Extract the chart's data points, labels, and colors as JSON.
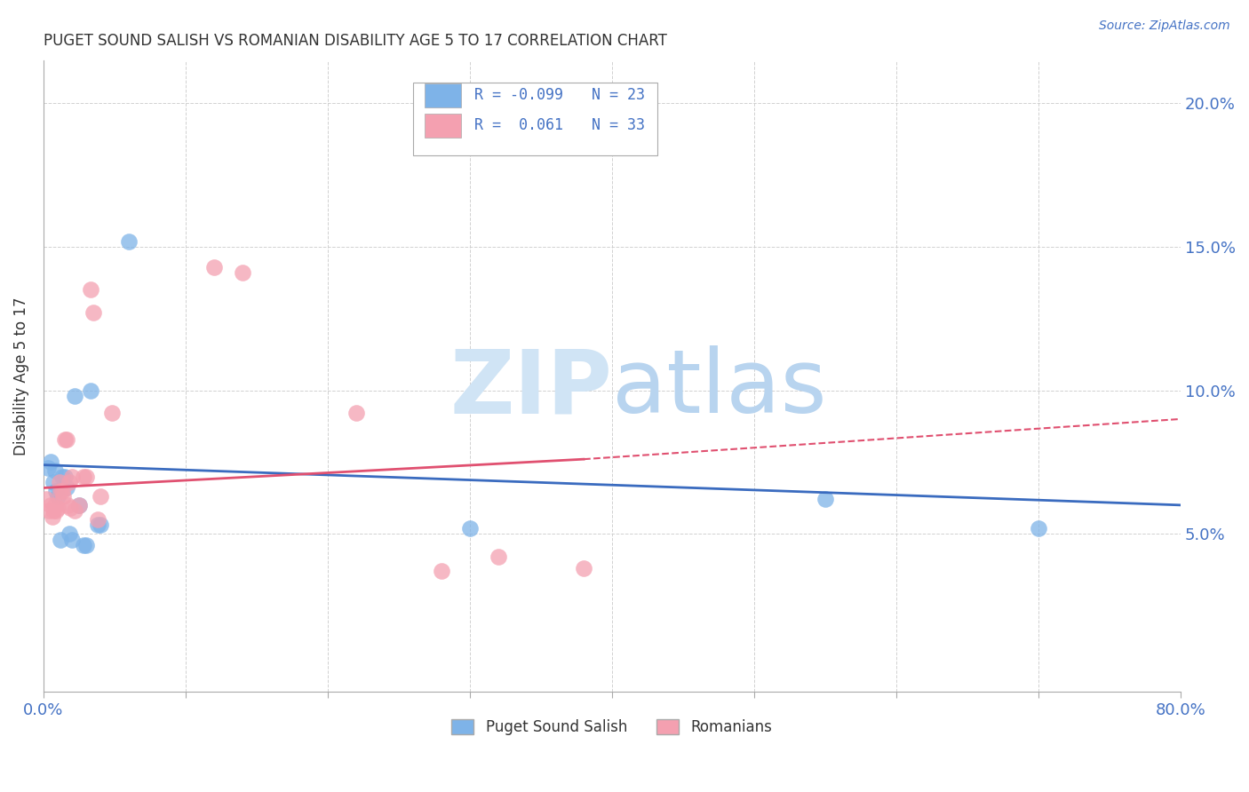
{
  "title": "PUGET SOUND SALISH VS ROMANIAN DISABILITY AGE 5 TO 17 CORRELATION CHART",
  "source": "Source: ZipAtlas.com",
  "ylabel": "Disability Age 5 to 17",
  "xlim": [
    0.0,
    0.8
  ],
  "ylim": [
    -0.005,
    0.215
  ],
  "yticks": [
    0.05,
    0.1,
    0.15,
    0.2
  ],
  "ytick_labels": [
    "5.0%",
    "10.0%",
    "15.0%",
    "20.0%"
  ],
  "series": [
    {
      "name": "Puget Sound Salish",
      "color": "#7eb3e8",
      "R": "-0.099",
      "N": "23",
      "x": [
        0.003,
        0.005,
        0.007,
        0.008,
        0.009,
        0.01,
        0.012,
        0.013,
        0.015,
        0.016,
        0.018,
        0.02,
        0.022,
        0.025,
        0.028,
        0.03,
        0.033,
        0.038,
        0.04,
        0.06,
        0.3,
        0.55,
        0.7
      ],
      "y": [
        0.073,
        0.075,
        0.068,
        0.072,
        0.065,
        0.063,
        0.048,
        0.07,
        0.07,
        0.066,
        0.05,
        0.048,
        0.098,
        0.06,
        0.046,
        0.046,
        0.1,
        0.053,
        0.053,
        0.152,
        0.052,
        0.062,
        0.052
      ]
    },
    {
      "name": "Romanians",
      "color": "#f4a0b0",
      "R": "0.061",
      "N": "33",
      "x": [
        0.002,
        0.004,
        0.005,
        0.006,
        0.007,
        0.008,
        0.009,
        0.01,
        0.011,
        0.012,
        0.013,
        0.014,
        0.015,
        0.016,
        0.017,
        0.018,
        0.019,
        0.02,
        0.022,
        0.025,
        0.028,
        0.03,
        0.033,
        0.035,
        0.038,
        0.04,
        0.048,
        0.12,
        0.14,
        0.22,
        0.28,
        0.32,
        0.38
      ],
      "y": [
        0.062,
        0.058,
        0.06,
        0.056,
        0.058,
        0.06,
        0.058,
        0.059,
        0.068,
        0.065,
        0.065,
        0.063,
        0.083,
        0.083,
        0.06,
        0.068,
        0.059,
        0.07,
        0.058,
        0.06,
        0.07,
        0.07,
        0.135,
        0.127,
        0.055,
        0.063,
        0.092,
        0.143,
        0.141,
        0.092,
        0.037,
        0.042,
        0.038
      ]
    }
  ],
  "trend_blue": {
    "x_start": 0.0,
    "x_end": 0.8,
    "y_start": 0.074,
    "y_end": 0.06,
    "color": "#3a6bbf",
    "linewidth": 2.0
  },
  "trend_pink_solid": {
    "x_start": 0.0,
    "x_end": 0.38,
    "y_start": 0.066,
    "y_end": 0.076,
    "color": "#e05070",
    "linewidth": 2.0
  },
  "trend_pink_dashed": {
    "x_start": 0.38,
    "x_end": 0.8,
    "y_start": 0.076,
    "y_end": 0.09,
    "color": "#e05070",
    "linewidth": 1.5
  },
  "watermark_zip": "ZIP",
  "watermark_atlas": "atlas",
  "watermark_color": "#d0e4f5",
  "legend_items": [
    {
      "color": "#7eb3e8",
      "R_text": "R = -0.099",
      "N_text": "N = 23"
    },
    {
      "color": "#f4a0b0",
      "R_text": "R =  0.061",
      "N_text": "N = 33"
    }
  ],
  "background_color": "#ffffff",
  "grid_color": "#cccccc",
  "axis_label_color": "#4472c4",
  "title_color": "#333333",
  "legend_box_color": "#aaaaaa"
}
